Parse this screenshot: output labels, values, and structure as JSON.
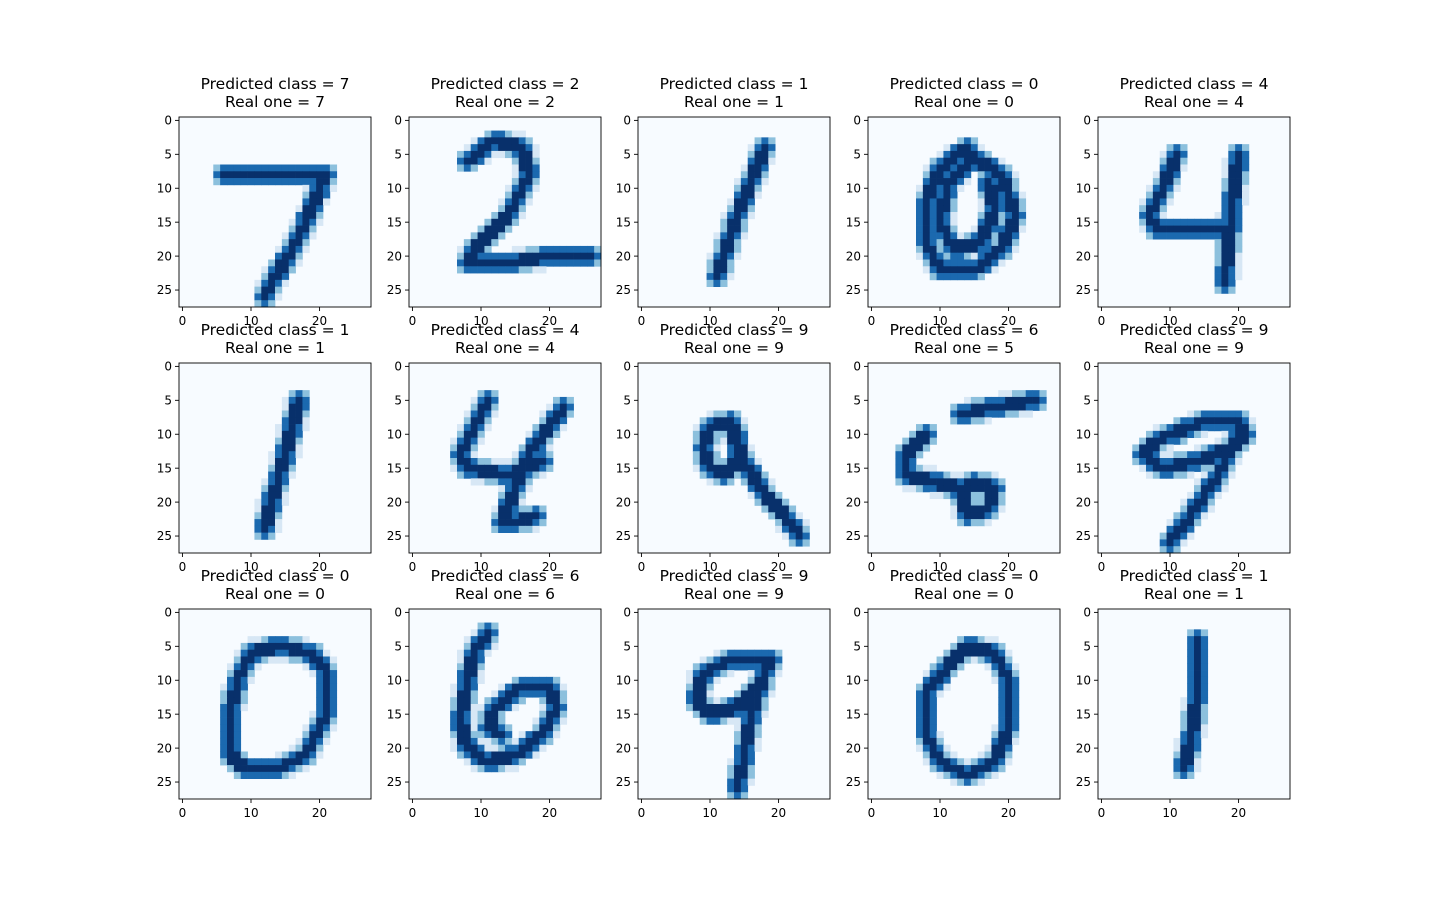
{
  "chart_data": [
    {
      "type": "heatmap",
      "title_predicted": "Predicted class = 7",
      "title_real": "Real one = 7",
      "predicted": 7,
      "real": 7,
      "colormap": "Blues",
      "xlim": [
        0,
        27
      ],
      "ylim": [
        27,
        0
      ],
      "x_ticks": [
        "0",
        "10",
        "20"
      ],
      "y_ticks": [
        "0",
        "5",
        "10",
        "15",
        "20",
        "25"
      ],
      "strokes": [
        [
          [
            6,
            8
          ],
          [
            21,
            8
          ]
        ],
        [
          [
            21,
            8
          ],
          [
            17,
            17
          ],
          [
            12,
            26
          ]
        ]
      ]
    },
    {
      "type": "heatmap",
      "title_predicted": "Predicted class = 2",
      "title_real": "Real one = 2",
      "predicted": 2,
      "real": 2,
      "colormap": "Blues",
      "xlim": [
        0,
        27
      ],
      "ylim": [
        27,
        0
      ],
      "x_ticks": [
        "0",
        "10",
        "20"
      ],
      "y_ticks": [
        "0",
        "5",
        "10",
        "15",
        "20",
        "25"
      ],
      "strokes": [
        [
          [
            8,
            6
          ],
          [
            12,
            3
          ],
          [
            16,
            4
          ],
          [
            17,
            8
          ],
          [
            14,
            14
          ],
          [
            9,
            19
          ],
          [
            8,
            21
          ],
          [
            14,
            21
          ],
          [
            20,
            20
          ],
          [
            26,
            20
          ]
        ]
      ]
    },
    {
      "type": "heatmap",
      "title_predicted": "Predicted class = 1",
      "title_real": "Real one = 1",
      "predicted": 1,
      "real": 1,
      "colormap": "Blues",
      "xlim": [
        0,
        27
      ],
      "ylim": [
        27,
        0
      ],
      "x_ticks": [
        "0",
        "10",
        "20"
      ],
      "y_ticks": [
        "0",
        "5",
        "10",
        "15",
        "20",
        "25"
      ],
      "strokes": [
        [
          [
            18,
            4
          ],
          [
            14,
            14
          ],
          [
            11,
            23
          ]
        ]
      ]
    },
    {
      "type": "heatmap",
      "title_predicted": "Predicted class = 0",
      "title_real": "Real one = 0",
      "predicted": 0,
      "real": 0,
      "colormap": "Blues",
      "xlim": [
        0,
        27
      ],
      "ylim": [
        27,
        0
      ],
      "x_ticks": [
        "0",
        "10",
        "20"
      ],
      "y_ticks": [
        "0",
        "5",
        "10",
        "15",
        "20",
        "25"
      ],
      "strokes": [
        [
          [
            14,
            4
          ],
          [
            10,
            7
          ],
          [
            8,
            12
          ],
          [
            8,
            18
          ],
          [
            10,
            22
          ],
          [
            15,
            22
          ],
          [
            19,
            19
          ],
          [
            21,
            14
          ],
          [
            19,
            8
          ],
          [
            14,
            5
          ]
        ],
        [
          [
            14,
            6
          ],
          [
            11,
            10
          ],
          [
            10,
            15
          ],
          [
            12,
            19
          ],
          [
            16,
            18
          ],
          [
            18,
            13
          ],
          [
            17,
            9
          ]
        ]
      ]
    },
    {
      "type": "heatmap",
      "title_predicted": "Predicted class = 4",
      "title_real": "Real one = 4",
      "predicted": 4,
      "real": 4,
      "colormap": "Blues",
      "xlim": [
        0,
        27
      ],
      "ylim": [
        27,
        0
      ],
      "x_ticks": [
        "0",
        "10",
        "20"
      ],
      "y_ticks": [
        "0",
        "5",
        "10",
        "15",
        "20",
        "25"
      ],
      "strokes": [
        [
          [
            11,
            5
          ],
          [
            9,
            10
          ],
          [
            7,
            14
          ],
          [
            8,
            16
          ],
          [
            14,
            16
          ],
          [
            19,
            16
          ]
        ],
        [
          [
            20,
            5
          ],
          [
            19,
            13
          ],
          [
            18,
            24
          ]
        ]
      ]
    },
    {
      "type": "heatmap",
      "title_predicted": "Predicted class = 1",
      "title_real": "Real one = 1",
      "predicted": 1,
      "real": 1,
      "colormap": "Blues",
      "xlim": [
        0,
        27
      ],
      "ylim": [
        27,
        0
      ],
      "x_ticks": [
        "0",
        "10",
        "20"
      ],
      "y_ticks": [
        "0",
        "5",
        "10",
        "15",
        "20",
        "25"
      ],
      "strokes": [
        [
          [
            17,
            5
          ],
          [
            15,
            13
          ],
          [
            13,
            20
          ],
          [
            12,
            24
          ]
        ]
      ]
    },
    {
      "type": "heatmap",
      "title_predicted": "Predicted class = 4",
      "title_real": "Real one = 4",
      "predicted": 4,
      "real": 4,
      "colormap": "Blues",
      "xlim": [
        0,
        27
      ],
      "ylim": [
        27,
        0
      ],
      "x_ticks": [
        "0",
        "10",
        "20"
      ],
      "y_ticks": [
        "0",
        "5",
        "10",
        "15",
        "20",
        "25"
      ],
      "strokes": [
        [
          [
            11,
            5
          ],
          [
            9,
            9
          ],
          [
            7,
            13
          ],
          [
            8,
            15
          ],
          [
            14,
            16
          ],
          [
            19,
            14
          ]
        ],
        [
          [
            22,
            6
          ],
          [
            17,
            13
          ],
          [
            15,
            18
          ],
          [
            13,
            23
          ],
          [
            15,
            23
          ],
          [
            18,
            22
          ]
        ]
      ]
    },
    {
      "type": "heatmap",
      "title_predicted": "Predicted class = 9",
      "title_real": "Real one = 9",
      "predicted": 9,
      "real": 9,
      "colormap": "Blues",
      "xlim": [
        0,
        27
      ],
      "ylim": [
        27,
        0
      ],
      "x_ticks": [
        "0",
        "10",
        "20"
      ],
      "y_ticks": [
        "0",
        "5",
        "10",
        "15",
        "20",
        "25"
      ],
      "strokes": [
        [
          [
            13,
            8
          ],
          [
            10,
            9
          ],
          [
            9,
            12
          ],
          [
            10,
            15
          ],
          [
            12,
            16
          ],
          [
            14,
            14
          ],
          [
            14,
            10
          ],
          [
            13,
            8
          ]
        ],
        [
          [
            13,
            9
          ],
          [
            15,
            14
          ],
          [
            18,
            19
          ],
          [
            21,
            22
          ],
          [
            23,
            25
          ]
        ]
      ]
    },
    {
      "type": "heatmap",
      "title_predicted": "Predicted class = 6",
      "title_real": "Real one = 5",
      "predicted": 6,
      "real": 5,
      "colormap": "Blues",
      "xlim": [
        0,
        27
      ],
      "ylim": [
        27,
        0
      ],
      "x_ticks": [
        "0",
        "10",
        "20"
      ],
      "y_ticks": [
        "0",
        "5",
        "10",
        "15",
        "20",
        "25"
      ],
      "strokes": [
        [
          [
            24,
            5
          ],
          [
            18,
            6
          ],
          [
            13,
            7
          ]
        ],
        [
          [
            8,
            10
          ],
          [
            5,
            13
          ],
          [
            5,
            16
          ],
          [
            9,
            17
          ],
          [
            13,
            18
          ],
          [
            14,
            22
          ],
          [
            17,
            21
          ],
          [
            18,
            18
          ],
          [
            15,
            17
          ],
          [
            13,
            19
          ]
        ]
      ]
    },
    {
      "type": "heatmap",
      "title_predicted": "Predicted class = 9",
      "title_real": "Real one = 9",
      "predicted": 9,
      "real": 9,
      "colormap": "Blues",
      "xlim": [
        0,
        27
      ],
      "ylim": [
        27,
        0
      ],
      "x_ticks": [
        "0",
        "10",
        "20"
      ],
      "y_ticks": [
        "0",
        "5",
        "10",
        "15",
        "20",
        "25"
      ],
      "strokes": [
        [
          [
            20,
            8
          ],
          [
            15,
            8
          ],
          [
            8,
            11
          ],
          [
            6,
            13
          ],
          [
            9,
            15
          ],
          [
            14,
            14
          ],
          [
            19,
            12
          ],
          [
            21,
            10
          ],
          [
            20,
            8
          ]
        ],
        [
          [
            20,
            10
          ],
          [
            17,
            16
          ],
          [
            13,
            22
          ],
          [
            10,
            26
          ]
        ]
      ]
    },
    {
      "type": "heatmap",
      "title_predicted": "Predicted class = 0",
      "title_real": "Real one = 0",
      "predicted": 0,
      "real": 0,
      "colormap": "Blues",
      "xlim": [
        0,
        27
      ],
      "ylim": [
        27,
        0
      ],
      "x_ticks": [
        "0",
        "10",
        "20"
      ],
      "y_ticks": [
        "0",
        "5",
        "10",
        "15",
        "20",
        "25"
      ],
      "strokes": [
        [
          [
            14,
            5
          ],
          [
            10,
            6
          ],
          [
            8,
            10
          ],
          [
            7,
            15
          ],
          [
            7,
            21
          ],
          [
            9,
            23
          ],
          [
            14,
            23
          ],
          [
            18,
            21
          ],
          [
            21,
            15
          ],
          [
            21,
            9
          ],
          [
            19,
            6
          ],
          [
            14,
            5
          ]
        ]
      ]
    },
    {
      "type": "heatmap",
      "title_predicted": "Predicted class = 6",
      "title_real": "Real one = 6",
      "predicted": 6,
      "real": 6,
      "colormap": "Blues",
      "xlim": [
        0,
        27
      ],
      "ylim": [
        27,
        0
      ],
      "x_ticks": [
        "0",
        "10",
        "20"
      ],
      "y_ticks": [
        "0",
        "5",
        "10",
        "15",
        "20",
        "25"
      ],
      "strokes": [
        [
          [
            11,
            3
          ],
          [
            9,
            6
          ],
          [
            8,
            10
          ],
          [
            7,
            16
          ],
          [
            8,
            20
          ],
          [
            11,
            22
          ],
          [
            15,
            21
          ],
          [
            19,
            18
          ],
          [
            21,
            14
          ],
          [
            20,
            11
          ],
          [
            16,
            11
          ],
          [
            12,
            14
          ],
          [
            11,
            17
          ],
          [
            13,
            18
          ]
        ]
      ]
    },
    {
      "type": "heatmap",
      "title_predicted": "Predicted class = 9",
      "title_real": "Real one = 9",
      "predicted": 9,
      "real": 9,
      "colormap": "Blues",
      "xlim": [
        0,
        27
      ],
      "ylim": [
        27,
        0
      ],
      "x_ticks": [
        "0",
        "10",
        "20"
      ],
      "y_ticks": [
        "0",
        "5",
        "10",
        "15",
        "20",
        "25"
      ],
      "strokes": [
        [
          [
            19,
            7
          ],
          [
            13,
            7
          ],
          [
            9,
            9
          ],
          [
            8,
            13
          ],
          [
            10,
            15
          ],
          [
            14,
            14
          ],
          [
            17,
            11
          ],
          [
            19,
            7
          ]
        ],
        [
          [
            18,
            9
          ],
          [
            16,
            15
          ],
          [
            15,
            21
          ],
          [
            14,
            26
          ]
        ]
      ]
    },
    {
      "type": "heatmap",
      "title_predicted": "Predicted class = 0",
      "title_real": "Real one = 0",
      "predicted": 0,
      "real": 0,
      "colormap": "Blues",
      "xlim": [
        0,
        27
      ],
      "ylim": [
        27,
        0
      ],
      "x_ticks": [
        "0",
        "10",
        "20"
      ],
      "y_ticks": [
        "0",
        "5",
        "10",
        "15",
        "20",
        "25"
      ],
      "strokes": [
        [
          [
            14,
            5
          ],
          [
            11,
            8
          ],
          [
            8,
            12
          ],
          [
            8,
            18
          ],
          [
            10,
            22
          ],
          [
            14,
            24
          ],
          [
            18,
            22
          ],
          [
            20,
            17
          ],
          [
            20,
            10
          ],
          [
            18,
            6
          ],
          [
            14,
            5
          ]
        ]
      ]
    },
    {
      "type": "heatmap",
      "title_predicted": "Predicted class = 1",
      "title_real": "Real one = 1",
      "predicted": 1,
      "real": 1,
      "colormap": "Blues",
      "xlim": [
        0,
        27
      ],
      "ylim": [
        27,
        0
      ],
      "x_ticks": [
        "0",
        "10",
        "20"
      ],
      "y_ticks": [
        "0",
        "5",
        "10",
        "15",
        "20",
        "25"
      ],
      "strokes": [
        [
          [
            14,
            4
          ],
          [
            14,
            12
          ],
          [
            13,
            19
          ],
          [
            12,
            23
          ]
        ]
      ]
    }
  ]
}
